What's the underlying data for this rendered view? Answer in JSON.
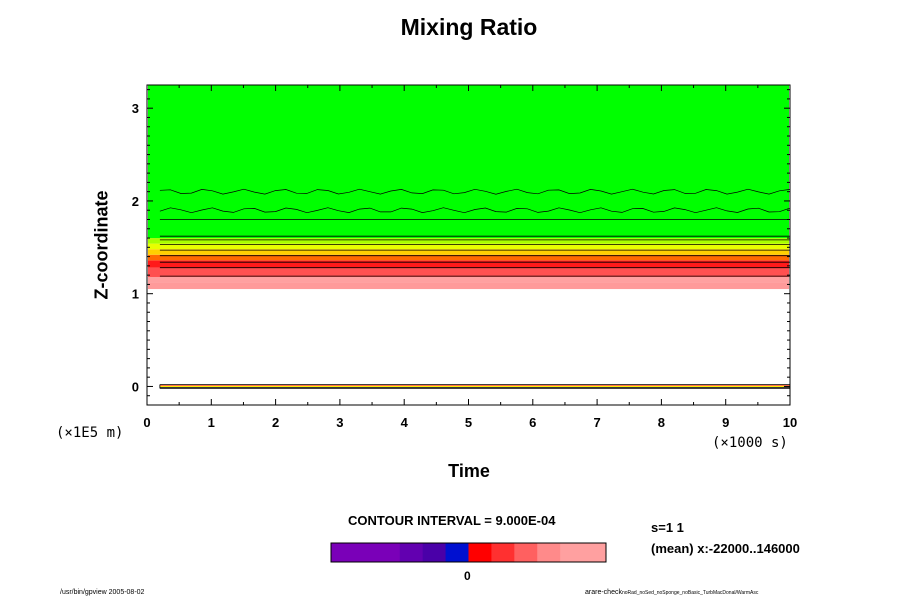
{
  "chart_data": {
    "type": "heatmap",
    "title": "Mixing Ratio",
    "xlabel": "Time",
    "ylabel": "Z-coordinate",
    "x_scale_label": "(×1000 s)",
    "y_scale_label": "(×1E5 m)",
    "xlim": [
      0,
      10
    ],
    "ylim": [
      -0.2,
      3.25
    ],
    "x_ticks": [
      "0",
      "1",
      "2",
      "3",
      "4",
      "5",
      "6",
      "7",
      "8",
      "9",
      "10"
    ],
    "y_ticks": [
      "0",
      "1",
      "2",
      "3"
    ],
    "bands": [
      {
        "y0": 1.05,
        "y1": 1.12,
        "color": "#ff9a9a"
      },
      {
        "y0": 1.12,
        "y1": 1.18,
        "color": "#ffa0a0"
      },
      {
        "y0": 1.18,
        "y1": 1.28,
        "color": "#ff5050"
      },
      {
        "y0": 1.28,
        "y1": 1.36,
        "color": "#ff1a1a"
      },
      {
        "y0": 1.36,
        "y1": 1.42,
        "color": "#ff6a00"
      },
      {
        "y0": 1.42,
        "y1": 1.48,
        "color": "#ffd000"
      },
      {
        "y0": 1.48,
        "y1": 1.54,
        "color": "#e8ff00"
      },
      {
        "y0": 1.54,
        "y1": 1.6,
        "color": "#a8ff00"
      },
      {
        "y0": 1.6,
        "y1": 3.25,
        "color": "#00ff00"
      }
    ],
    "surface_band": {
      "y0": -0.02,
      "y1": 0.02,
      "colors": [
        "#ff4040",
        "#ffee00",
        "#303030"
      ]
    },
    "contour_levels": [
      1.19,
      1.28,
      1.34,
      1.41,
      1.47,
      1.53,
      1.58,
      1.62,
      1.8,
      1.9,
      2.1
    ],
    "wavy_contours": [
      1.9,
      2.1
    ],
    "x_start": 0.2,
    "colorbar": {
      "segments": [
        "#7a00b8",
        "#7a00b8",
        "#7a00b8",
        "#6200b0",
        "#4a00a8",
        "#0010d0",
        "#ff0000",
        "#ff3030",
        "#ff6060",
        "#ff8a8a",
        "#ffa0a0",
        "#ffa0a0"
      ],
      "zero_label": "0"
    },
    "contour_interval": "CONTOUR INTERVAL = 9.000E-04"
  },
  "stats": {
    "s": "s=1 1",
    "mean": "(mean) x:-22000..146000"
  },
  "footer": {
    "left": "/usr/bin/gpview 2005-08-02",
    "right_main": "arare-check",
    "right_small": "noRad_noSed_noSponge_noBasic_TurbMacDonal/WarmAsc"
  }
}
